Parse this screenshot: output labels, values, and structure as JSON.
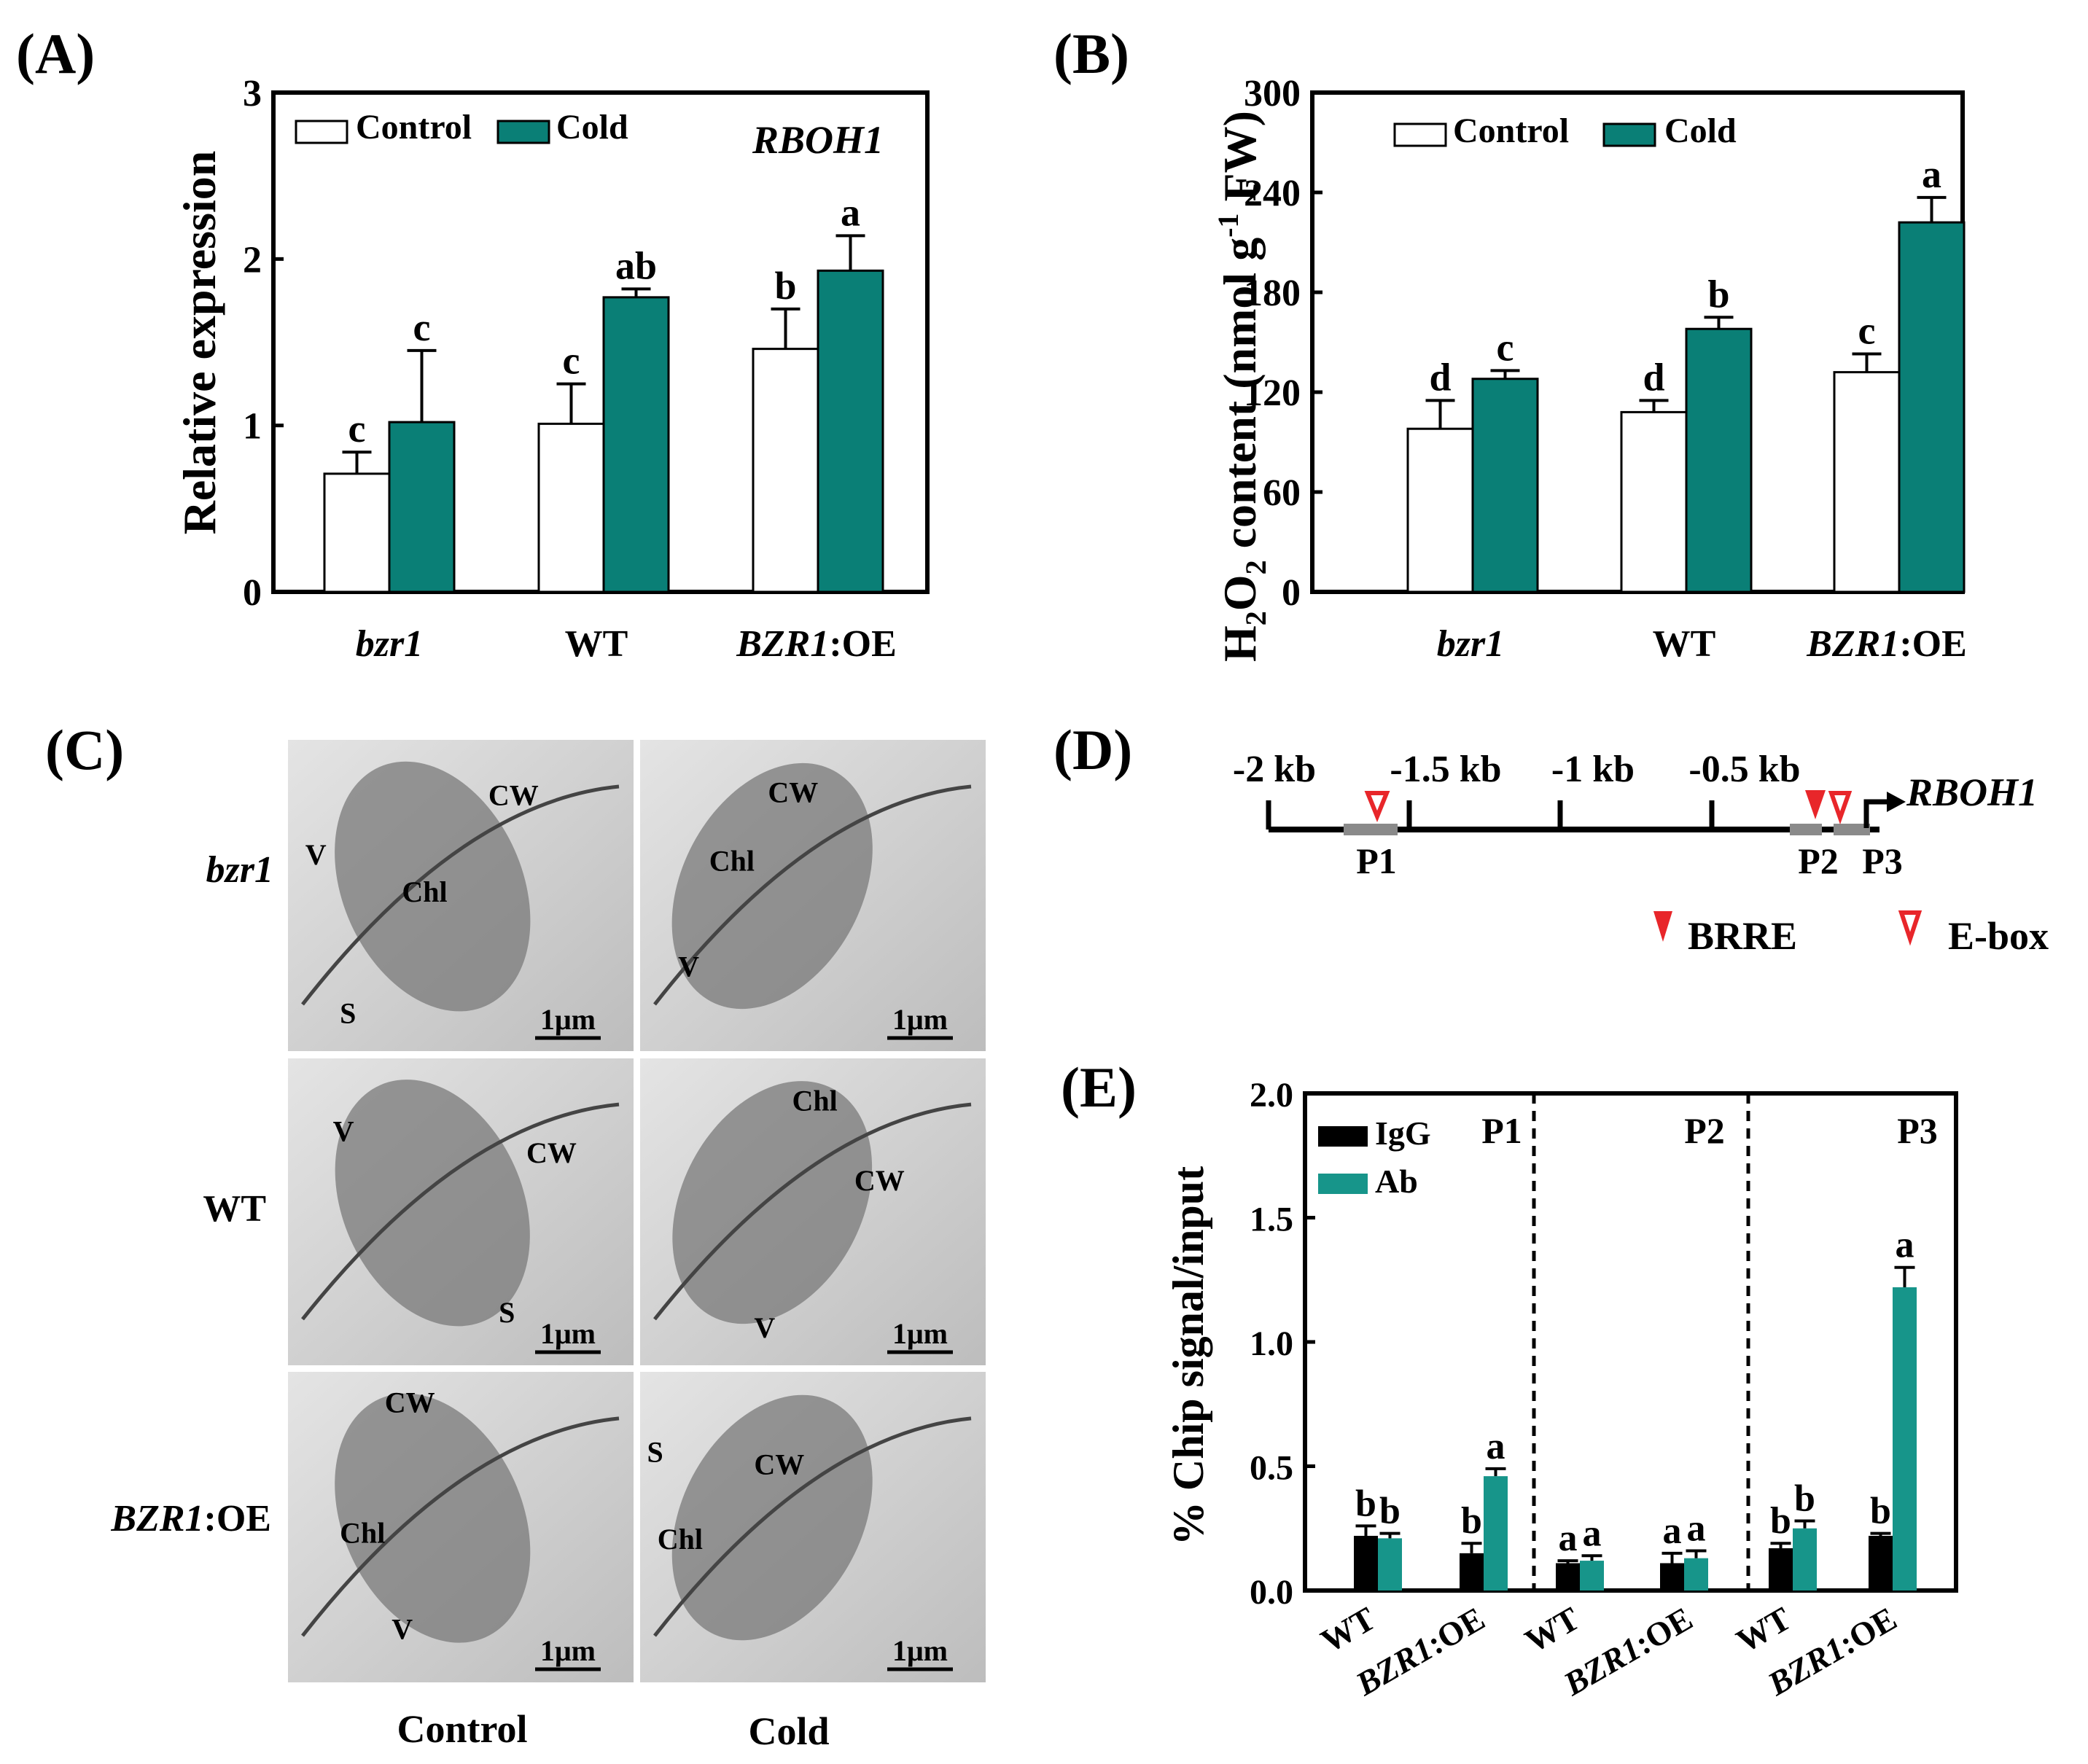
{
  "colors": {
    "control": "#ffffff",
    "cold": "#0a7f76",
    "igg": "#000000",
    "ab": "#17958a",
    "brre": "#e8262a",
    "tem_bg": "#c9c9c9"
  },
  "panel_labels": {
    "a": "(A)",
    "b": "(B)",
    "c": "(C)",
    "d": "(D)",
    "e": "(E)"
  },
  "chart_data": [
    {
      "id": "A",
      "type": "bar",
      "categories": [
        "bzr1",
        "WT",
        "BZR1:OE"
      ],
      "series": [
        {
          "name": "Control",
          "values": [
            0.71,
            1.01,
            1.46
          ],
          "errors": [
            0.13,
            0.24,
            0.24
          ],
          "letters": [
            "c",
            "c",
            "b"
          ]
        },
        {
          "name": "Cold",
          "values": [
            1.02,
            1.77,
            1.93
          ],
          "errors": [
            0.43,
            0.05,
            0.21
          ],
          "letters": [
            "c",
            "ab",
            "a"
          ]
        }
      ],
      "title": "RBOH1",
      "ylabel": "Relative expression",
      "xlabel": "",
      "ylim": [
        0,
        3
      ],
      "yticks": [
        "0",
        "1",
        "2",
        "3"
      ],
      "legend": "top-left"
    },
    {
      "id": "B",
      "type": "bar",
      "categories": [
        "bzr1",
        "WT",
        "BZR1:OE"
      ],
      "series": [
        {
          "name": "Control",
          "values": [
            98,
            108,
            132
          ],
          "errors": [
            17,
            7,
            11
          ],
          "letters": [
            "d",
            "d",
            "c"
          ]
        },
        {
          "name": "Cold",
          "values": [
            128,
            158,
            222
          ],
          "errors": [
            5,
            7,
            15
          ],
          "letters": [
            "c",
            "b",
            "a"
          ]
        }
      ],
      "ylabel": {
        "h": "H",
        "sub2a": "2",
        "o": "O",
        "sub2b": "2",
        "content": " content (nmol g",
        "sup": "-1",
        "fw": " FW)"
      },
      "ylim": [
        0,
        300
      ],
      "yticks": [
        "0",
        "60",
        "120",
        "180",
        "240",
        "300"
      ],
      "legend": "top-left"
    },
    {
      "id": "E",
      "type": "bar",
      "groups": [
        "P1",
        "P2",
        "P3"
      ],
      "categories": [
        "WT",
        "BZR1:OE",
        "WT",
        "BZR1:OE",
        "WT",
        "BZR1:OE"
      ],
      "series": [
        {
          "name": "IgG",
          "values": [
            0.22,
            0.15,
            0.11,
            0.11,
            0.17,
            0.22
          ],
          "errors": [
            0.04,
            0.04,
            0.01,
            0.04,
            0.02,
            0.01
          ],
          "letters": [
            "b",
            "b",
            "a",
            "a",
            "b",
            "b"
          ]
        },
        {
          "name": "Ab",
          "values": [
            0.21,
            0.46,
            0.12,
            0.13,
            0.25,
            1.22
          ],
          "errors": [
            0.02,
            0.03,
            0.02,
            0.03,
            0.03,
            0.08
          ],
          "letters": [
            "b",
            "a",
            "a",
            "a",
            "b",
            "a"
          ]
        }
      ],
      "ylabel": "% Chip signal/input",
      "ylim": [
        0,
        2.0
      ],
      "yticks": [
        "0.0",
        "0.5",
        "1.0",
        "1.5",
        "2.0"
      ],
      "legend": "top-left"
    }
  ],
  "panel_c": {
    "row_labels": [
      "bzr1",
      "WT",
      "BZR1:OE"
    ],
    "col_labels": [
      "Control",
      "Cold"
    ],
    "scale": "1μm",
    "tile_labels": [
      [
        "CW",
        "Chl",
        "V",
        "S"
      ],
      [
        "CW",
        "Chl",
        "V"
      ],
      [
        "V",
        "CW",
        "S"
      ],
      [
        "Chl",
        "CW",
        "V"
      ],
      [
        "CW",
        "Chl",
        "V"
      ],
      [
        "S",
        "CW",
        "Chl"
      ]
    ]
  },
  "panel_d": {
    "ticks": [
      "-2 kb",
      "-1.5 kb",
      "-1 kb",
      "-0.5 kb"
    ],
    "gene": "RBOH1",
    "regions": [
      "P1",
      "P2",
      "P3"
    ],
    "legend": {
      "brre": "BRRE",
      "ebox": "E-box"
    }
  }
}
